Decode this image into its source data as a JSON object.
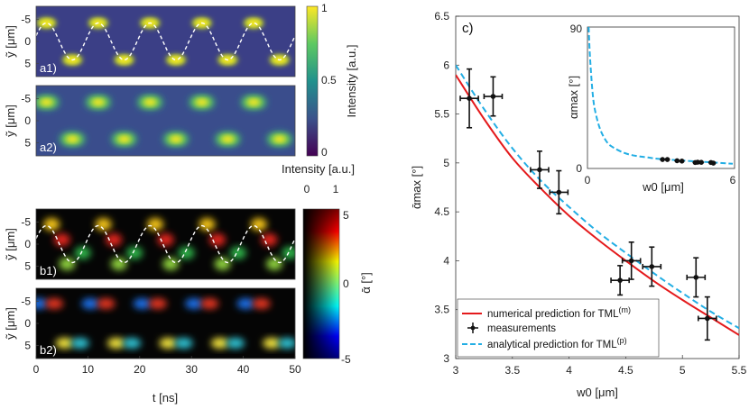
{
  "chart_data": [
    {
      "panel": "a1",
      "type": "heatmap",
      "ylabel": "ỹ [μm]",
      "yticks": [
        "-5",
        "0",
        "5"
      ],
      "colorbar": {
        "label": "Intensity [a.u.]",
        "ticks": [
          "0",
          "0.5",
          "1"
        ],
        "colormap": "viridis"
      }
    },
    {
      "panel": "a2",
      "type": "heatmap",
      "ylabel": "ỹ [μm]",
      "yticks": [
        "-5",
        "0",
        "5"
      ]
    },
    {
      "panel": "b1",
      "type": "heatmap",
      "ylabel": "ỹ [μm]",
      "yticks": [
        "-5",
        "0",
        "5"
      ],
      "colorbar": {
        "label": "ᾱ [°]",
        "ticks": [
          "5",
          "0",
          "-5"
        ],
        "intensity_label": "Intensity [a.u.]",
        "intensity_ticks": [
          "0",
          "1"
        ],
        "colormap": "jet"
      }
    },
    {
      "panel": "b2",
      "type": "heatmap",
      "ylabel": "ỹ [μm]",
      "yticks": [
        "-5",
        "0",
        "5"
      ],
      "xlabel": "t [ns]",
      "xticks": [
        "0",
        "10",
        "20",
        "30",
        "40",
        "50"
      ],
      "xlim": [
        0,
        50
      ]
    },
    {
      "panel": "c",
      "type": "scatter",
      "xlabel": "w0 [μm]",
      "ylabel": "ᾱmax [°]",
      "xlim": [
        3,
        5.5
      ],
      "ylim": [
        3,
        6.5
      ],
      "xticks": [
        "3",
        "3.5",
        "4",
        "4.5",
        "5",
        "5.5"
      ],
      "yticks": [
        "3",
        "3.5",
        "4",
        "4.5",
        "5",
        "5.5",
        "6",
        "6.5"
      ],
      "measurements": {
        "name": "measurements",
        "x": [
          3.12,
          3.33,
          3.74,
          3.91,
          4.45,
          4.55,
          4.73,
          5.12,
          5.22
        ],
        "y": [
          5.66,
          5.68,
          4.93,
          4.7,
          3.8,
          4.0,
          3.94,
          3.83,
          3.41
        ],
        "xerr": [
          0.08,
          0.08,
          0.08,
          0.08,
          0.08,
          0.08,
          0.08,
          0.08,
          0.08
        ],
        "yerr": [
          0.3,
          0.2,
          0.19,
          0.22,
          0.15,
          0.19,
          0.2,
          0.2,
          0.22
        ]
      },
      "numerical": {
        "name": "numerical prediction for TML(m)",
        "color": "#e41a1c",
        "x": [
          3.0,
          3.25,
          3.5,
          3.75,
          4.0,
          4.25,
          4.5,
          4.75,
          5.0,
          5.25,
          5.5
        ],
        "y": [
          5.9,
          5.45,
          5.05,
          4.74,
          4.46,
          4.22,
          4.0,
          3.79,
          3.6,
          3.42,
          3.24
        ]
      },
      "analytical": {
        "name": "analytical prediction for TML(p)",
        "color": "#23aee4",
        "x": [
          3.0,
          3.25,
          3.5,
          3.75,
          4.0,
          4.25,
          4.5,
          4.75,
          5.0,
          5.25,
          5.5
        ],
        "y": [
          6.0,
          5.55,
          5.15,
          4.82,
          4.55,
          4.3,
          4.08,
          3.87,
          3.67,
          3.48,
          3.31
        ]
      },
      "legend_labels": {
        "numerical": "numerical prediction for TML",
        "numerical_sup": "(m)",
        "measurements": "measurements",
        "analytical": "analytical prediction for TML",
        "analytical_sup": "(p)"
      },
      "legend_position": "bottom-left",
      "panel_label": "c)",
      "inset": {
        "type": "line",
        "xlabel": "w0 [μm]",
        "ylabel": "αmax [°]",
        "xlim": [
          0,
          6
        ],
        "ylim": [
          0,
          90
        ],
        "xticks": [
          "0",
          "6"
        ],
        "yticks": [
          "0",
          "90"
        ],
        "curve_x": [
          0.05,
          0.1,
          0.2,
          0.3,
          0.5,
          0.75,
          1.0,
          1.5,
          2.0,
          2.5,
          3.0,
          4.0,
          5.0,
          6.0
        ],
        "curve_y": [
          90,
          72,
          50,
          38,
          26,
          18,
          14,
          10,
          8,
          7,
          6,
          5,
          4,
          3
        ],
        "points_x": [
          3.1,
          3.3,
          3.7,
          3.9,
          4.45,
          4.55,
          4.7,
          5.1,
          5.2
        ],
        "points_y": [
          5.7,
          5.7,
          4.9,
          4.7,
          3.8,
          4.0,
          3.9,
          3.8,
          3.4
        ]
      }
    }
  ],
  "labels": {
    "a1": "a1)",
    "a2": "a2)",
    "b1": "b1)",
    "b2": "b2)",
    "intensity_top": "Intensity [a.u.]",
    "intensity_side": "Intensity [a.u.]",
    "alpha_side": "ᾱ [°]",
    "ytilde": "ỹ [μm]",
    "t": "t [ns]",
    "w0": "w0 [μm]",
    "alpha_max": "ᾱmax [°]",
    "inset_alpha": "αmax [°]",
    "inset_w0": "w0 [μm]"
  }
}
